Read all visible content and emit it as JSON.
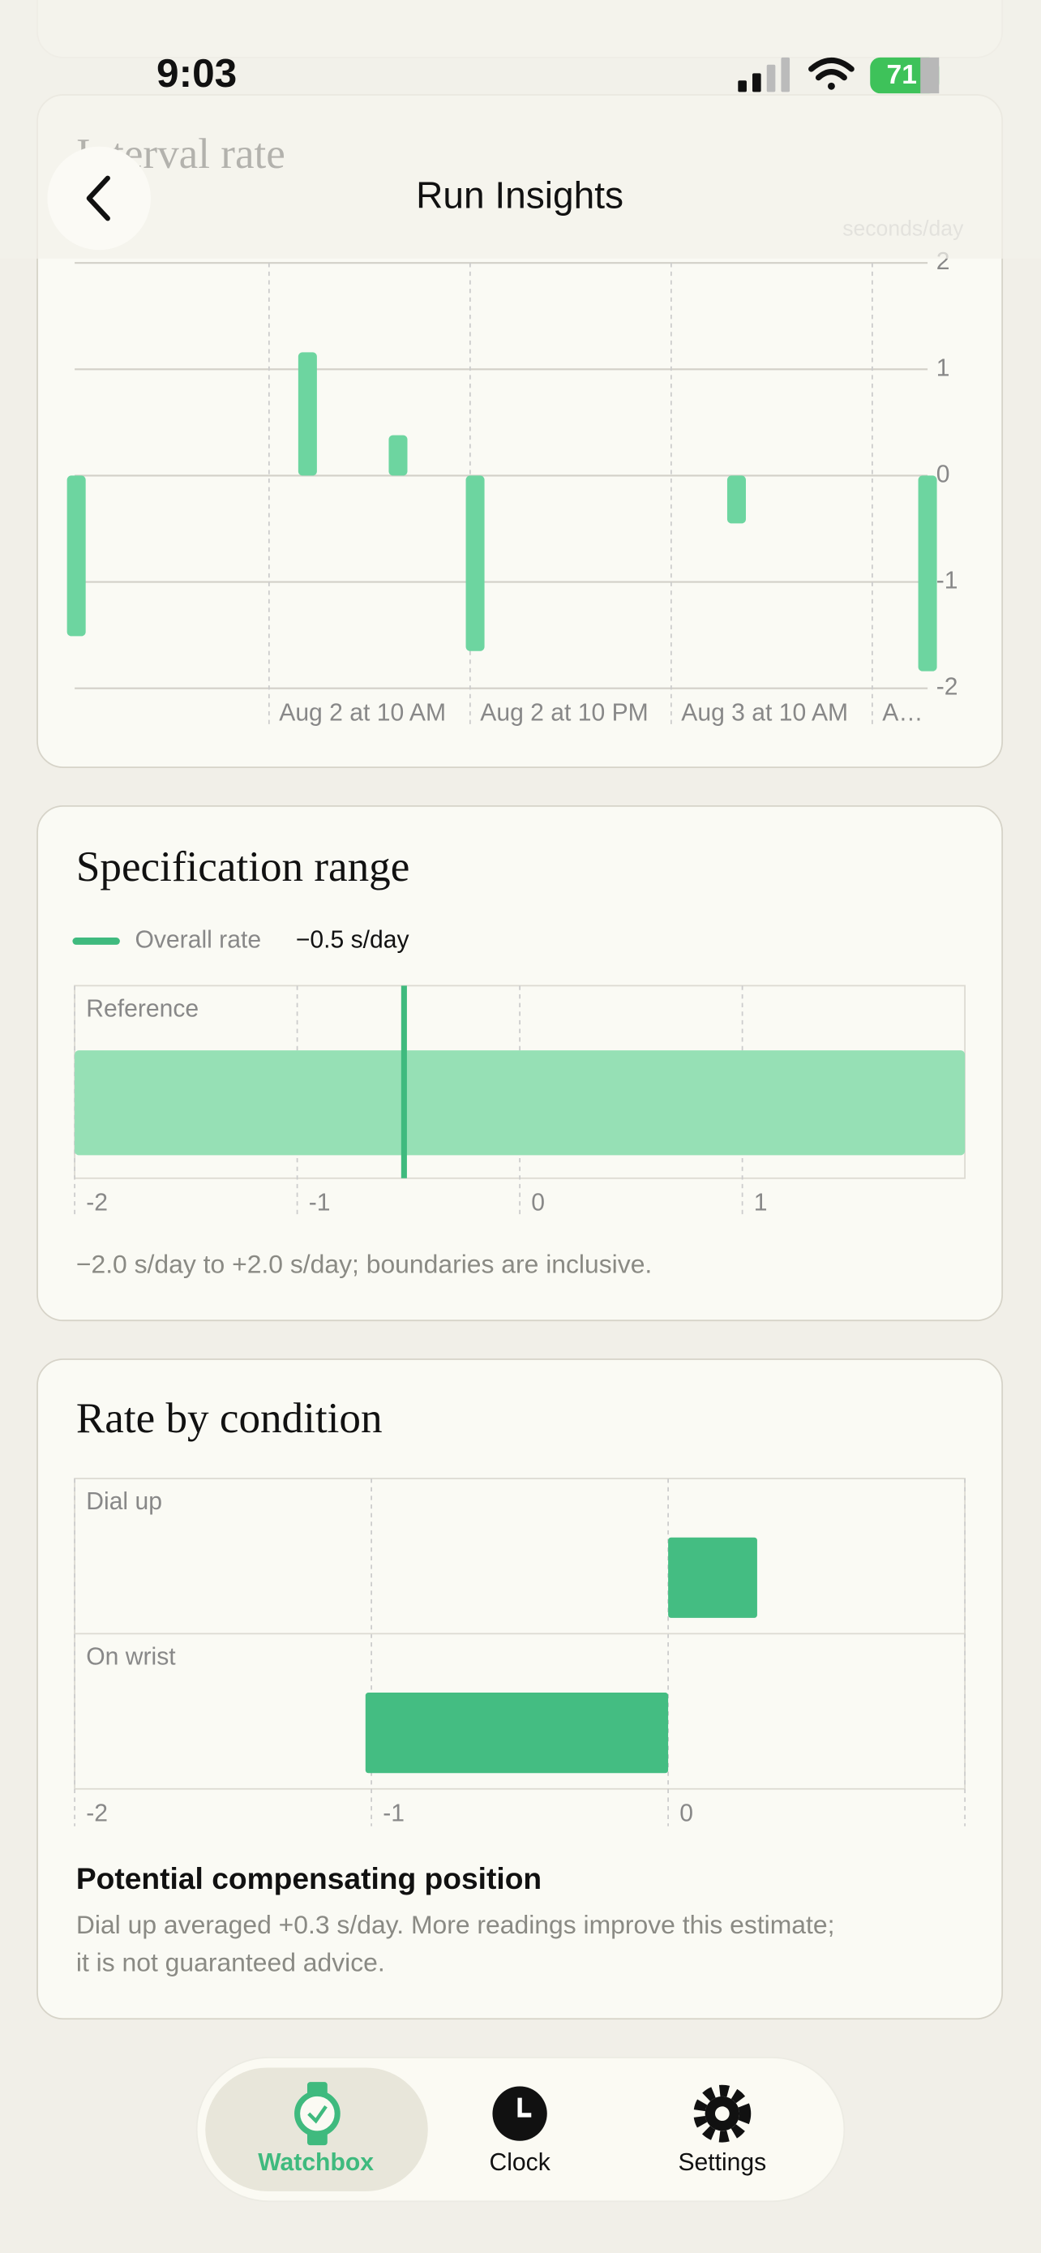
{
  "status_bar": {
    "time": "9:03",
    "battery": "71"
  },
  "nav": {
    "title": "Run Insights"
  },
  "chart_data": [
    {
      "type": "bar",
      "title": "Interval rate",
      "y_label": "seconds/day",
      "x": [
        -11.5,
        2.3,
        7.7,
        12.3,
        27.9,
        39.3
      ],
      "values": [
        -1.51,
        1.16,
        0.38,
        -1.65,
        -0.45,
        -1.84
      ],
      "color": "#6dd5a0",
      "xlim": [
        -11.6,
        39.3
      ],
      "xticks": [
        {
          "value": 0,
          "label": "Aug 2 at 10 AM"
        },
        {
          "value": 12,
          "label": "Aug 2 at 10 PM"
        },
        {
          "value": 24,
          "label": "Aug 3 at 10 AM"
        },
        {
          "value": 36,
          "label": "A…"
        }
      ],
      "ylim": [
        -2,
        2
      ],
      "yticks": [
        2,
        1,
        0,
        -1,
        -2
      ],
      "grid": true
    },
    {
      "type": "range",
      "title": "Specification range",
      "categories": [
        "Reference"
      ],
      "range": [
        -2,
        2
      ],
      "color": "#96e0b5",
      "marker": {
        "name": "Overall rate",
        "value": -0.52,
        "value_label": "−0.5 s/day",
        "color": "#3fba7e"
      },
      "xlim": [
        -2,
        2
      ],
      "xticks": [
        -2,
        -1,
        0,
        1
      ],
      "note": "−2.0 s/day to +2.0 s/day; boundaries are inclusive."
    },
    {
      "type": "hbar",
      "title": "Rate by condition",
      "categories": [
        "Dial up",
        "On wrist"
      ],
      "values": [
        0.3,
        -1.02
      ],
      "color": "#44bd82",
      "xlim": [
        -2,
        1
      ],
      "xticks": [
        -2,
        -1,
        0
      ]
    }
  ],
  "insight": {
    "title": "Potential compensating position",
    "lines": [
      "Dial up averaged +0.3 s/day. More readings improve this estimate;",
      "it is not guaranteed advice."
    ]
  },
  "tab_bar": {
    "items": [
      "Watchbox",
      "Clock",
      "Settings"
    ]
  }
}
